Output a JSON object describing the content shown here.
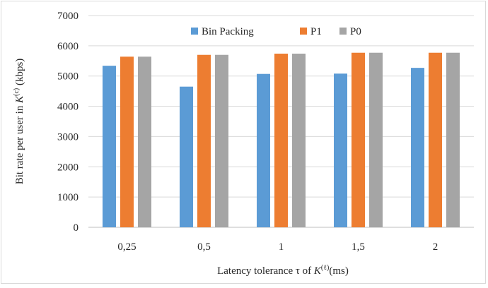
{
  "chart_data": {
    "type": "bar",
    "categories": [
      "0,25",
      "0,5",
      "1",
      "1,5",
      "2"
    ],
    "series": [
      {
        "name": "Bin Packing",
        "color": "#5b9bd5",
        "values": [
          5340,
          4650,
          5070,
          5080,
          5270
        ]
      },
      {
        "name": "P1",
        "color": "#ed7d31",
        "values": [
          5640,
          5700,
          5740,
          5770,
          5770
        ]
      },
      {
        "name": "P0",
        "color": "#a5a5a5",
        "values": [
          5640,
          5700,
          5740,
          5770,
          5770
        ]
      }
    ],
    "ylim": [
      0,
      7000
    ],
    "yticks": [
      0,
      1000,
      2000,
      3000,
      4000,
      5000,
      6000,
      7000
    ],
    "ylabel": "Bit rate per user in K(c) (kbps)",
    "ylabel_parts": {
      "prefix": "Bit rate per user in ",
      "symbol": "K",
      "superscript": "(c)",
      "suffix": " (kbps)"
    },
    "xlabel": "Latency tolerance τ of K(ℓ) (ms)",
    "xlabel_parts": {
      "prefix": "Latency tolerance τ of ",
      "symbol": "K",
      "superscript": "(ℓ)",
      "suffix": "(ms)"
    },
    "grid": true,
    "legend_position": "top-center"
  }
}
